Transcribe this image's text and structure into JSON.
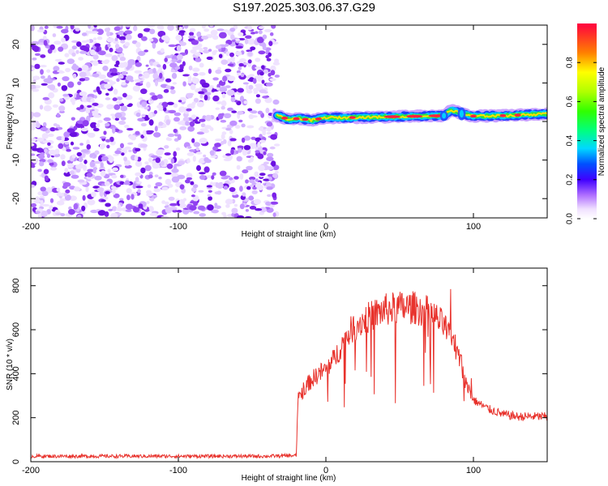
{
  "title": "S197.2025.303.06.37.G29",
  "chart_data": [
    {
      "type": "heatmap",
      "name": "spectrogram",
      "xlabel": "Height of straight line (km)",
      "ylabel": "Frequency (Hz)",
      "xlim": [
        -200,
        150
      ],
      "ylim": [
        -25,
        25
      ],
      "x_ticks": [
        -200,
        -100,
        0,
        100
      ],
      "y_ticks": [
        -20,
        -10,
        0,
        10,
        20
      ],
      "noise_region": [
        -200,
        -33
      ],
      "signal_region": [
        -33,
        150
      ],
      "signal_frequency_track": [
        {
          "x": -33,
          "f": 1.5
        },
        {
          "x": -25,
          "f": 0.5
        },
        {
          "x": -18,
          "f": 0.8
        },
        {
          "x": -10,
          "f": 0.3
        },
        {
          "x": 0,
          "f": 1.0
        },
        {
          "x": 15,
          "f": 1.0
        },
        {
          "x": 40,
          "f": 1.2
        },
        {
          "x": 80,
          "f": 1.5
        },
        {
          "x": 85,
          "f": 3.0
        },
        {
          "x": 92,
          "f": 2.0
        },
        {
          "x": 100,
          "f": 1.4
        },
        {
          "x": 120,
          "f": 1.5
        },
        {
          "x": 150,
          "f": 2.0
        }
      ],
      "colorbar": {
        "label": "Normalized spectral amplitude",
        "range": [
          0,
          1
        ],
        "ticks": [
          0.0,
          0.2,
          0.4,
          0.6,
          0.8
        ]
      }
    },
    {
      "type": "line",
      "name": "snr",
      "xlabel": "Height of straight line (km)",
      "ylabel": "SNR (10 * v/v)",
      "xlim": [
        -200,
        150
      ],
      "ylim": [
        0,
        880
      ],
      "x_ticks": [
        -200,
        -100,
        0,
        100
      ],
      "y_ticks": [
        0,
        200,
        400,
        600,
        800
      ],
      "color": "#e8322c",
      "series": [
        {
          "name": "SNR",
          "x": [
            -200,
            -160,
            -120,
            -80,
            -40,
            -20,
            -19,
            -15,
            -10,
            -5,
            0,
            5,
            10,
            15,
            20,
            30,
            40,
            50,
            60,
            70,
            80,
            85,
            90,
            95,
            100,
            110,
            120,
            130,
            140,
            150
          ],
          "values": [
            25,
            25,
            25,
            25,
            25,
            28,
            280,
            330,
            370,
            400,
            420,
            460,
            520,
            580,
            620,
            660,
            690,
            700,
            700,
            680,
            620,
            550,
            500,
            350,
            280,
            240,
            215,
            205,
            205,
            205
          ]
        }
      ],
      "noise": true
    }
  ]
}
